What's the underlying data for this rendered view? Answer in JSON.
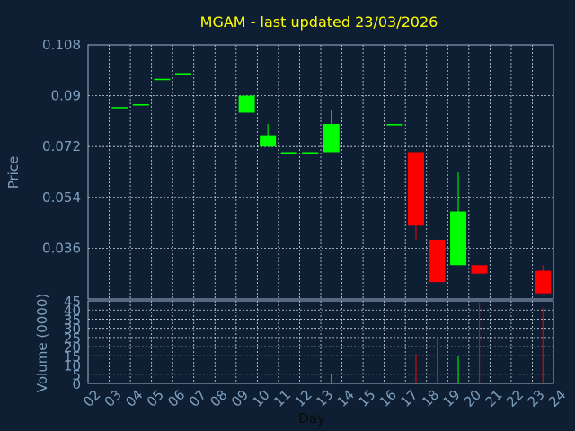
{
  "chart_data": {
    "type": "candlestick",
    "title": "MGAM - last updated 23/03/2026",
    "xlabel": "Day",
    "ylabel": "Price",
    "volume_label": "Volume (0000)",
    "x_ticks": [
      "02",
      "03",
      "04",
      "05",
      "06",
      "07",
      "08",
      "09",
      "10",
      "11",
      "12",
      "13",
      "14",
      "15",
      "16",
      "17",
      "18",
      "19",
      "20",
      "21",
      "22",
      "23",
      "24"
    ],
    "price_ticks": [
      "0.036",
      "0.054",
      "0.072",
      "0.09",
      "0.108"
    ],
    "volume_ticks": [
      "0",
      "5",
      "10",
      "15",
      "20",
      "25",
      "30",
      "35",
      "40",
      "45"
    ],
    "price_ylim": [
      0.018,
      0.108
    ],
    "volume_ylim": [
      0,
      45
    ],
    "grid": true,
    "colors": {
      "up": "#00ff00",
      "down": "#ff0000",
      "flat": "#00ff00",
      "background": "#0f1f33",
      "title": "#ffff00",
      "axis": "#7f9fbf"
    },
    "candles": [
      {
        "day": "03",
        "open": 0.086,
        "high": 0.086,
        "low": 0.086,
        "close": 0.086,
        "volume": 0
      },
      {
        "day": "04",
        "open": 0.087,
        "high": 0.087,
        "low": 0.087,
        "close": 0.087,
        "volume": 0
      },
      {
        "day": "05",
        "open": 0.096,
        "high": 0.096,
        "low": 0.096,
        "close": 0.096,
        "volume": 0
      },
      {
        "day": "06",
        "open": 0.098,
        "high": 0.098,
        "low": 0.098,
        "close": 0.098,
        "volume": 0
      },
      {
        "day": "09",
        "open": 0.084,
        "high": 0.09,
        "low": 0.084,
        "close": 0.09,
        "volume": 0
      },
      {
        "day": "10",
        "open": 0.072,
        "high": 0.08,
        "low": 0.072,
        "close": 0.076,
        "volume": 0
      },
      {
        "day": "11",
        "open": 0.07,
        "high": 0.07,
        "low": 0.07,
        "close": 0.07,
        "volume": 0
      },
      {
        "day": "12",
        "open": 0.07,
        "high": 0.07,
        "low": 0.07,
        "close": 0.07,
        "volume": 0
      },
      {
        "day": "13",
        "open": 0.07,
        "high": 0.085,
        "low": 0.07,
        "close": 0.08,
        "volume": 5
      },
      {
        "day": "16",
        "open": 0.08,
        "high": 0.08,
        "low": 0.08,
        "close": 0.08,
        "volume": 0
      },
      {
        "day": "17",
        "open": 0.07,
        "high": 0.07,
        "low": 0.039,
        "close": 0.044,
        "volume": 16
      },
      {
        "day": "18",
        "open": 0.039,
        "high": 0.039,
        "low": 0.024,
        "close": 0.024,
        "volume": 25
      },
      {
        "day": "19",
        "open": 0.03,
        "high": 0.063,
        "low": 0.03,
        "close": 0.049,
        "volume": 15
      },
      {
        "day": "20",
        "open": 0.03,
        "high": 0.03,
        "low": 0.027,
        "close": 0.027,
        "volume": 44
      },
      {
        "day": "23",
        "open": 0.028,
        "high": 0.03,
        "low": 0.02,
        "close": 0.02,
        "volume": 41
      }
    ]
  }
}
